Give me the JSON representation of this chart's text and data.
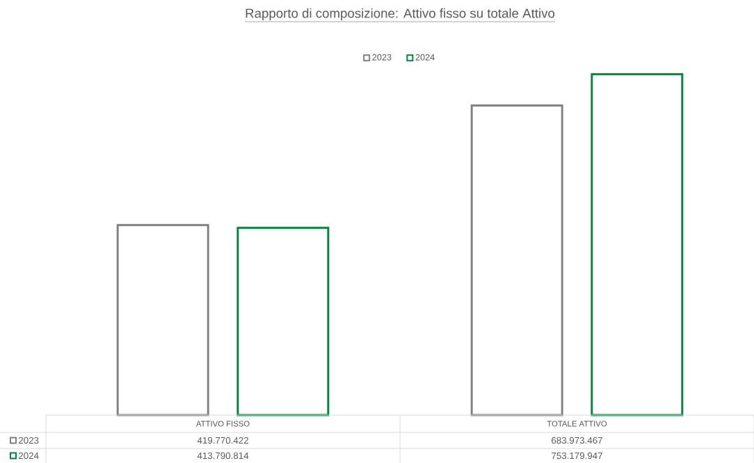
{
  "chart_data": {
    "type": "bar",
    "title": "Rapporto di composizione: Attivo fisso su totale Attivo",
    "categories": [
      "ATTIVO FISSO",
      "TOTALE ATTIVO"
    ],
    "series": [
      {
        "name": "2023",
        "color": "#808080",
        "values": [
          419770422,
          683973467
        ],
        "value_labels": [
          "419.770.422",
          "683.973.467"
        ]
      },
      {
        "name": "2024",
        "color": "#00843d",
        "values": [
          413790814,
          753179947
        ],
        "value_labels": [
          "413.790.814",
          "753.179.947"
        ]
      }
    ],
    "legend": "top"
  }
}
